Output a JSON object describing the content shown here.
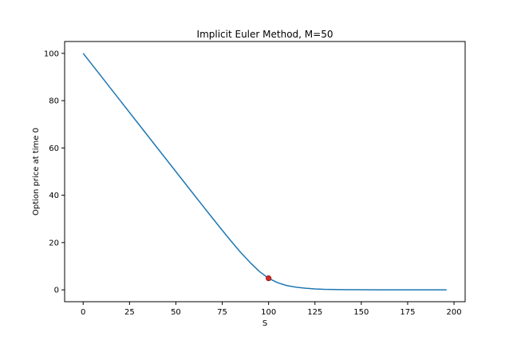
{
  "chart_data": {
    "type": "line",
    "title": "Implicit Euler Method, M=50",
    "xlabel": "S",
    "ylabel": "Option price at time 0",
    "xlim": [
      -10,
      206
    ],
    "ylim": [
      -5,
      105
    ],
    "xticks": [
      0,
      25,
      50,
      75,
      100,
      125,
      150,
      175,
      200
    ],
    "yticks": [
      0,
      20,
      40,
      60,
      80,
      100
    ],
    "grid": false,
    "legend": "none",
    "series": [
      {
        "color": "#1f77b4",
        "x": [
          0,
          10,
          20,
          30,
          40,
          50,
          60,
          70,
          75,
          80,
          85,
          90,
          95,
          100,
          105,
          110,
          115,
          120,
          125,
          130,
          140,
          150,
          160,
          170,
          180,
          190,
          196
        ],
        "y": [
          100,
          90,
          80,
          70,
          60,
          50,
          40,
          30.1,
          25.2,
          20.4,
          15.8,
          11.6,
          7.8,
          4.9,
          3.0,
          1.8,
          1.1,
          0.7,
          0.42,
          0.25,
          0.1,
          0.04,
          0.015,
          0.005,
          0.002,
          0.001,
          0
        ]
      }
    ],
    "marker": {
      "x": 100,
      "y": 4.9,
      "color": "#d62728"
    }
  }
}
